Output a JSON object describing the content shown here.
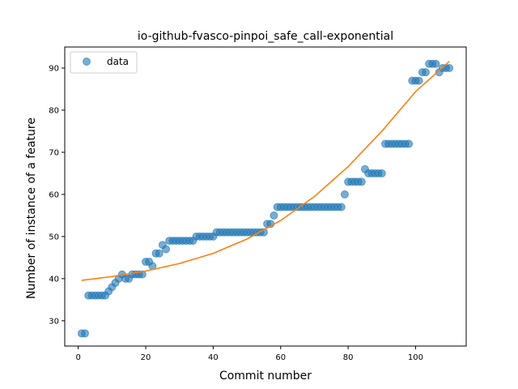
{
  "chart_data": {
    "type": "scatter",
    "title": "io-github-fvasco-pinpoi_safe_call-exponential",
    "xlabel": "Commit number",
    "ylabel": "Number of instance of a feature",
    "xlim": [
      -4,
      115
    ],
    "ylim": [
      24,
      95
    ],
    "xticks": [
      0,
      20,
      40,
      60,
      80,
      100
    ],
    "yticks": [
      30,
      40,
      50,
      60,
      70,
      80,
      90
    ],
    "grid": false,
    "legend": {
      "placement": "top-left",
      "entries": [
        "data"
      ]
    },
    "colors": {
      "points": "#1f77b4",
      "fit": "#ff7f0e"
    },
    "series": [
      {
        "name": "data",
        "kind": "points",
        "x": [
          1,
          2,
          3,
          4,
          5,
          6,
          7,
          8,
          9,
          10,
          11,
          12,
          13,
          14,
          15,
          16,
          17,
          18,
          19,
          20,
          21,
          22,
          23,
          24,
          25,
          26,
          27,
          28,
          29,
          30,
          31,
          32,
          33,
          34,
          35,
          36,
          37,
          38,
          39,
          40,
          41,
          42,
          43,
          44,
          45,
          46,
          47,
          48,
          49,
          50,
          51,
          52,
          53,
          54,
          55,
          56,
          57,
          58,
          59,
          60,
          61,
          62,
          63,
          64,
          65,
          66,
          67,
          68,
          69,
          70,
          71,
          72,
          73,
          74,
          75,
          76,
          77,
          78,
          79,
          80,
          81,
          82,
          83,
          84,
          85,
          86,
          87,
          88,
          89,
          90,
          91,
          92,
          93,
          94,
          95,
          96,
          97,
          98,
          99,
          100,
          101,
          102,
          103,
          104,
          105,
          106,
          107,
          108,
          109,
          110
        ],
        "y": [
          27,
          27,
          36,
          36,
          36,
          36,
          36,
          36,
          37,
          38,
          39,
          40,
          41,
          40,
          40,
          41,
          41,
          41,
          41,
          44,
          44,
          43,
          46,
          46,
          48,
          47,
          49,
          49,
          49,
          49,
          49,
          49,
          49,
          49,
          50,
          50,
          50,
          50,
          50,
          50,
          51,
          51,
          51,
          51,
          51,
          51,
          51,
          51,
          51,
          51,
          51,
          51,
          51,
          51,
          51,
          53,
          53,
          55,
          57,
          57,
          57,
          57,
          57,
          57,
          57,
          57,
          57,
          57,
          57,
          57,
          57,
          57,
          57,
          57,
          57,
          57,
          57,
          57,
          60,
          63,
          63,
          63,
          63,
          63,
          66,
          65,
          65,
          65,
          65,
          65,
          72,
          72,
          72,
          72,
          72,
          72,
          72,
          72,
          87,
          87,
          87,
          89,
          89,
          91,
          91,
          91,
          89,
          90,
          90,
          90
        ]
      },
      {
        "kind": "fit",
        "x": [
          1,
          10,
          20,
          30,
          40,
          50,
          60,
          70,
          80,
          90,
          100,
          110
        ],
        "y": [
          39.6,
          40.5,
          41.8,
          43.6,
          46.0,
          49.4,
          53.8,
          59.5,
          66.6,
          75.0,
          84.4,
          91.6
        ]
      }
    ]
  }
}
